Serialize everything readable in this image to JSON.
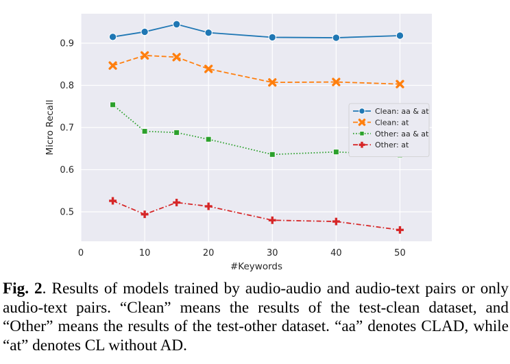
{
  "chart_data": {
    "type": "line",
    "x": [
      5,
      10,
      15,
      20,
      30,
      40,
      50
    ],
    "xlabel": "#Keywords",
    "ylabel": "Micro Recall",
    "xlim": [
      0,
      55
    ],
    "ylim": [
      0.43,
      0.97
    ],
    "xticks": [
      0,
      10,
      20,
      30,
      40,
      50
    ],
    "yticks": [
      0.5,
      0.6,
      0.7,
      0.8,
      0.9
    ],
    "grid": true,
    "background": "#eaeaf2",
    "legend_position": "center-right",
    "series": [
      {
        "name": "Clean: aa & at",
        "color": "#1f77b4",
        "marker": "circle",
        "dash": "solid",
        "values": [
          0.915,
          0.927,
          0.945,
          0.925,
          0.914,
          0.913,
          0.918
        ]
      },
      {
        "name": "Clean: at",
        "color": "#ff7f0e",
        "marker": "x",
        "dash": "dashed",
        "values": [
          0.847,
          0.871,
          0.867,
          0.839,
          0.807,
          0.808,
          0.803
        ]
      },
      {
        "name": "Other: aa & at",
        "color": "#2ca02c",
        "marker": "square",
        "dash": "dotted",
        "values": [
          0.754,
          0.691,
          0.688,
          0.672,
          0.636,
          0.642,
          0.635
        ]
      },
      {
        "name": "Other: at",
        "color": "#d62728",
        "marker": "plus",
        "dash": "dashdot",
        "values": [
          0.526,
          0.494,
          0.522,
          0.513,
          0.48,
          0.477,
          0.457
        ]
      }
    ]
  },
  "caption": {
    "label": "Fig. 2",
    "text": ". Results of models trained by audio-audio and audio-text pairs or only audio-text pairs. “Clean” means the results of the test-clean dataset, and “Other” means the results of the test-other dataset. “aa” denotes CLAD, while “at” denotes CL without AD."
  }
}
